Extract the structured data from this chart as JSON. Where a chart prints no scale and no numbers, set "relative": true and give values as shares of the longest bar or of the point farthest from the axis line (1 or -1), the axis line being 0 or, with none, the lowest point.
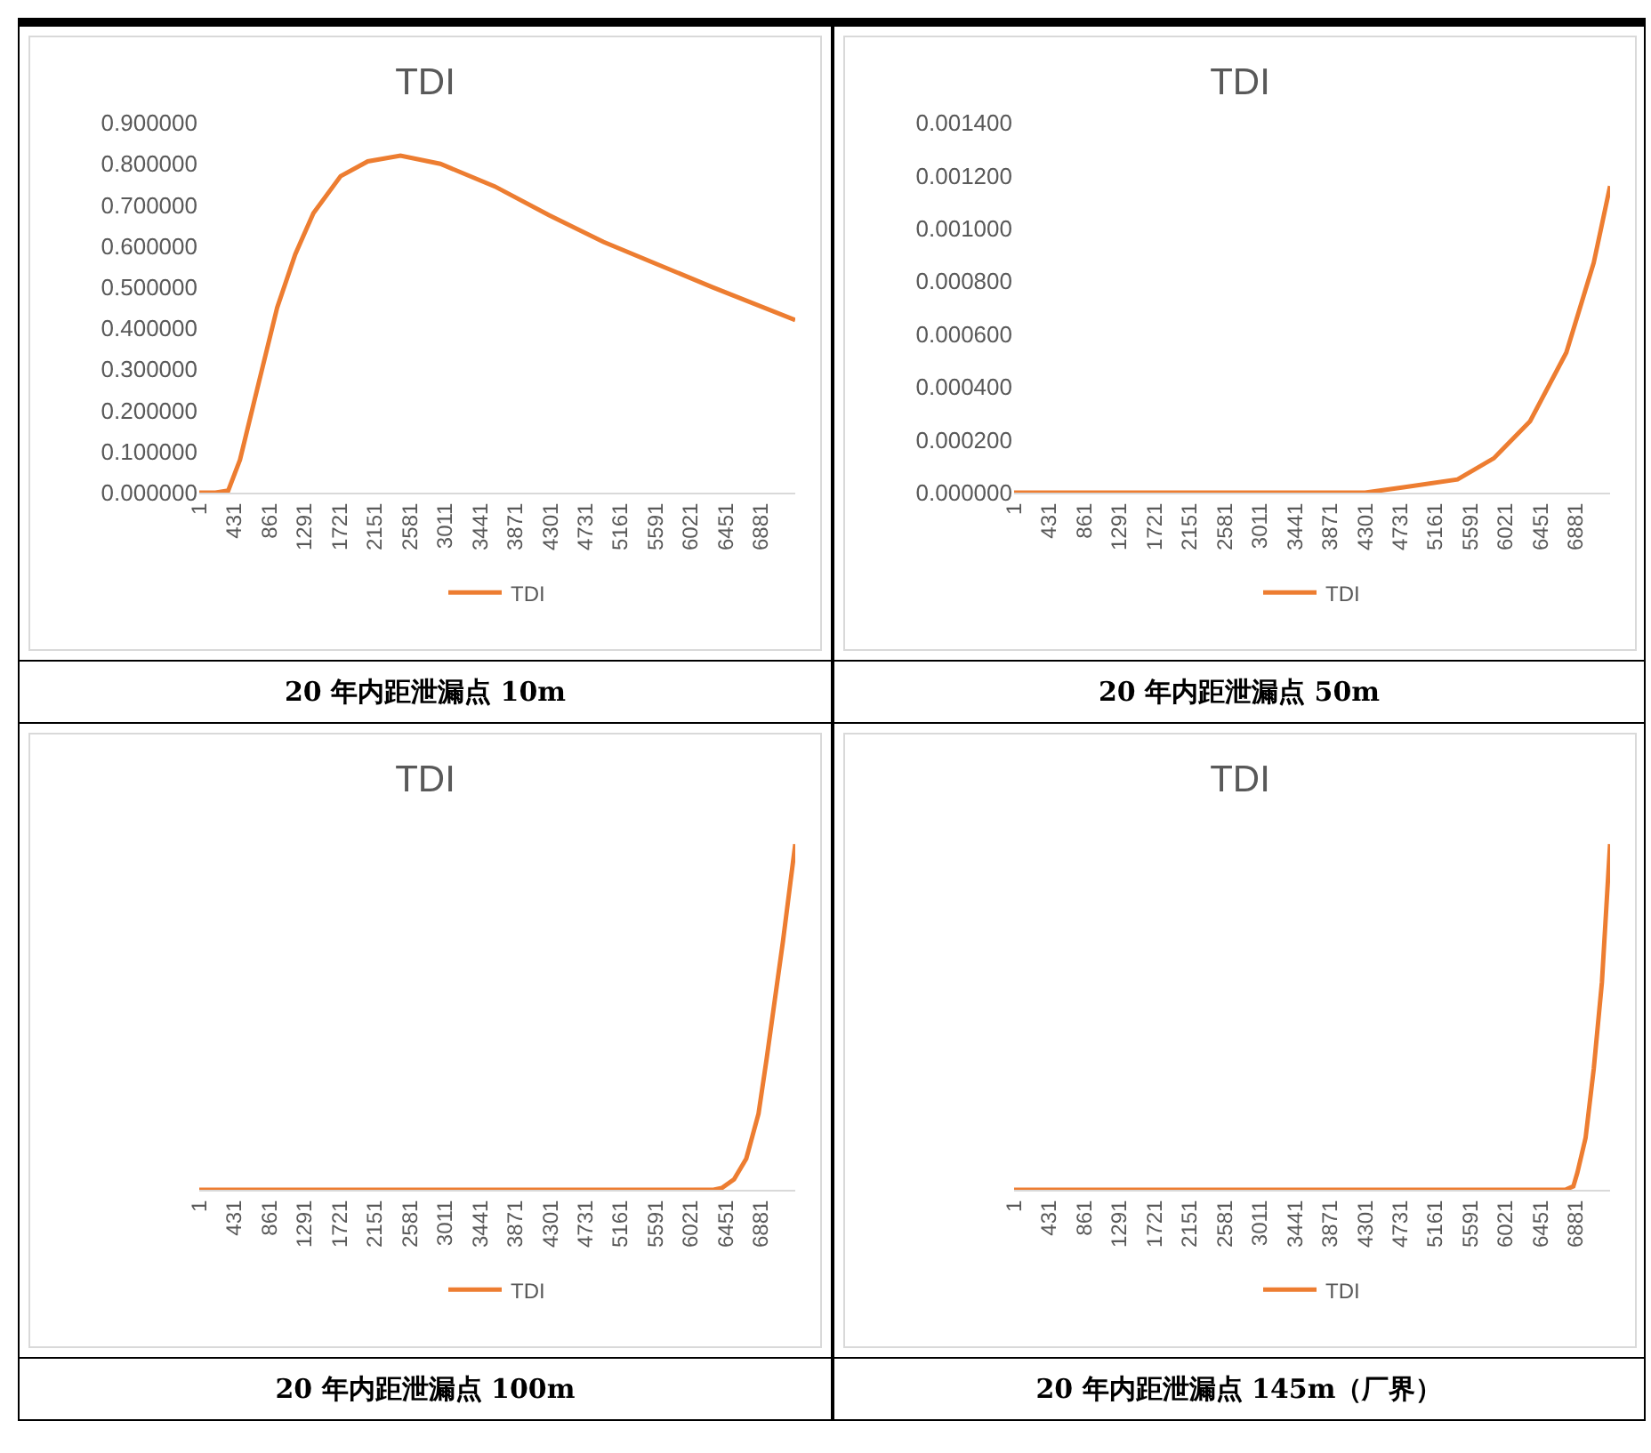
{
  "chart_data": [
    {
      "type": "line",
      "title": "TDI",
      "annotations": [
        "20 年内距泄漏点 10m"
      ],
      "legend": "bottom",
      "marker": "none",
      "line_style": "solid",
      "grid": false,
      "xlim": [
        1,
        7300
      ],
      "xticks": [
        1,
        431,
        861,
        1291,
        1721,
        2151,
        2581,
        3011,
        3441,
        3871,
        4301,
        4731,
        5161,
        5591,
        6021,
        6451,
        6881
      ],
      "ylim": [
        0,
        0.9
      ],
      "yticks": [
        {
          "value": 0,
          "label": "0.000000"
        },
        {
          "value": 0.1,
          "label": "0.100000"
        },
        {
          "value": 0.2,
          "label": "0.200000"
        },
        {
          "value": 0.3,
          "label": "0.300000"
        },
        {
          "value": 0.4,
          "label": "0.400000"
        },
        {
          "value": 0.5,
          "label": "0.500000"
        },
        {
          "value": 0.6,
          "label": "0.600000"
        },
        {
          "value": 0.7,
          "label": "0.700000"
        },
        {
          "value": 0.8,
          "label": "0.800000"
        },
        {
          "value": 0.9,
          "label": "0.900000"
        }
      ],
      "x": [
        1,
        200,
        356,
        500,
        733,
        955,
        1177,
        1399,
        1732,
        2065,
        2465,
        2953,
        3620,
        4285,
        4950,
        5617,
        6283,
        7300
      ],
      "series": [
        {
          "name": "TDI",
          "color": "#ed7d31",
          "values": [
            0,
            0,
            0.005,
            0.08,
            0.27,
            0.45,
            0.58,
            0.68,
            0.77,
            0.806,
            0.82,
            0.8,
            0.745,
            0.675,
            0.61,
            0.555,
            0.5,
            0.42
          ]
        }
      ]
    },
    {
      "type": "line",
      "title": "TDI",
      "annotations": [
        "20 年内距泄漏点 50m"
      ],
      "legend": "bottom",
      "marker": "none",
      "line_style": "solid",
      "grid": false,
      "xlim": [
        1,
        7300
      ],
      "xticks": [
        1,
        431,
        861,
        1291,
        1721,
        2151,
        2581,
        3011,
        3441,
        3871,
        4301,
        4731,
        5161,
        5591,
        6021,
        6451,
        6881
      ],
      "ylim": [
        0,
        0.0014
      ],
      "yticks": [
        {
          "value": 0,
          "label": "0.000000"
        },
        {
          "value": 0.0002,
          "label": "0.000200"
        },
        {
          "value": 0.0004,
          "label": "0.000400"
        },
        {
          "value": 0.0006,
          "label": "0.000600"
        },
        {
          "value": 0.0008,
          "label": "0.000800"
        },
        {
          "value": 0.001,
          "label": "0.001000"
        },
        {
          "value": 0.0012,
          "label": "0.001200"
        },
        {
          "value": 0.0014,
          "label": "0.001400"
        }
      ],
      "x": [
        1,
        4300,
        4770,
        5432,
        5876,
        6320,
        6764,
        7100,
        7300
      ],
      "series": [
        {
          "name": "TDI",
          "color": "#ed7d31",
          "values": [
            0,
            0,
            2e-05,
            5e-05,
            0.00013,
            0.00027,
            0.00053,
            0.00087,
            0.00116
          ]
        }
      ]
    },
    {
      "type": "line",
      "title": "TDI",
      "annotations": [
        "20 年内距泄漏点 100m"
      ],
      "legend": "bottom",
      "marker": "none",
      "line_style": "solid",
      "grid": false,
      "relative": true,
      "xlim": [
        1,
        7300
      ],
      "xticks": [
        1,
        431,
        861,
        1291,
        1721,
        2151,
        2581,
        3011,
        3441,
        3871,
        4301,
        4731,
        5161,
        5591,
        6021,
        6451,
        6881
      ],
      "x": [
        1,
        6300,
        6400,
        6550,
        6700,
        6850,
        6950,
        7050,
        7150,
        7300
      ],
      "series": [
        {
          "name": "TDI",
          "color": "#ed7d31",
          "values": [
            0,
            0,
            0.005,
            0.03,
            0.09,
            0.22,
            0.38,
            0.55,
            0.72,
            1
          ]
        }
      ]
    },
    {
      "type": "line",
      "title": "TDI",
      "annotations": [
        "20 年内距泄漏点 145m（厂界）"
      ],
      "legend": "bottom",
      "marker": "none",
      "line_style": "solid",
      "grid": false,
      "relative": true,
      "xlim": [
        1,
        7300
      ],
      "xticks": [
        1,
        431,
        861,
        1291,
        1721,
        2151,
        2581,
        3011,
        3441,
        3871,
        4301,
        4731,
        5161,
        5591,
        6021,
        6451,
        6881
      ],
      "x": [
        1,
        6750,
        6850,
        6900,
        7000,
        7100,
        7200,
        7300
      ],
      "series": [
        {
          "name": "TDI",
          "color": "#ed7d31",
          "values": [
            0,
            0,
            0.01,
            0.05,
            0.15,
            0.35,
            0.6,
            1
          ]
        }
      ]
    }
  ]
}
